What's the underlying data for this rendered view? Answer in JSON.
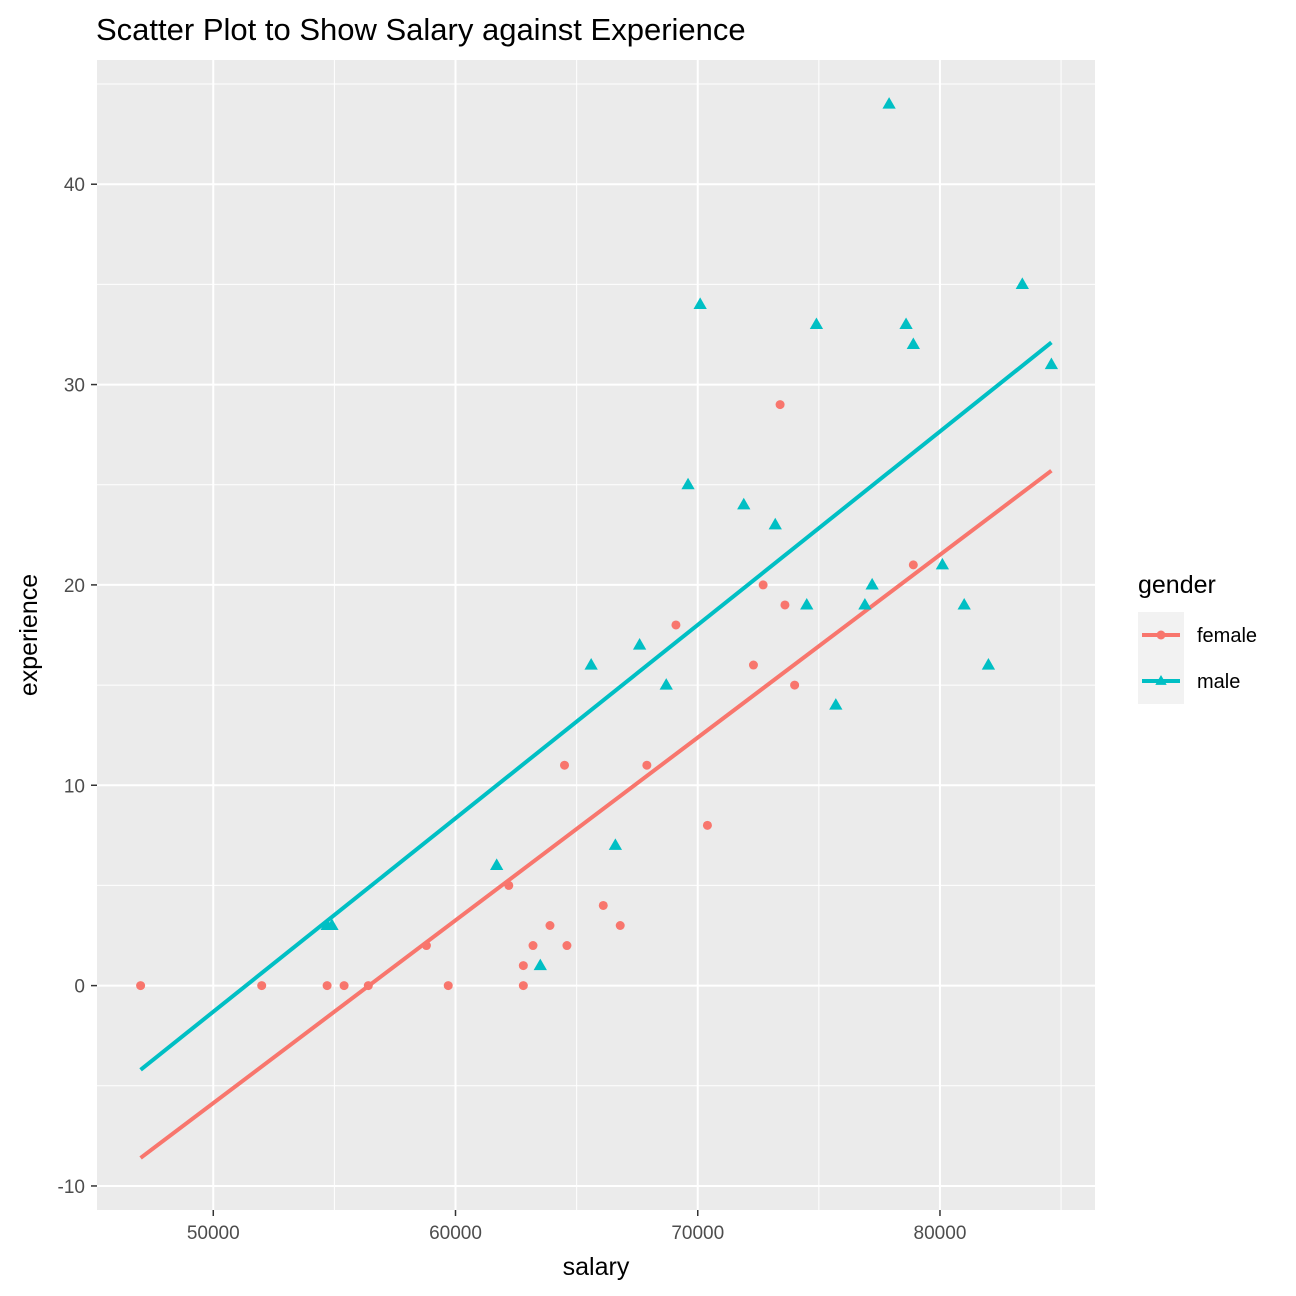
{
  "chart_data": {
    "type": "scatter",
    "title": "Scatter Plot to Show Salary against Experience",
    "xlabel": "salary",
    "ylabel": "experience",
    "xlim": [
      45200,
      86400
    ],
    "ylim": [
      -11.2,
      46.2
    ],
    "x_major_ticks": [
      50000,
      60000,
      70000,
      80000
    ],
    "x_tick_labels": [
      "50000",
      "60000",
      "70000",
      "80000"
    ],
    "x_minor_ticks": [
      55000,
      65000,
      75000,
      85000
    ],
    "y_major_ticks": [
      -10,
      0,
      10,
      20,
      30,
      40
    ],
    "y_tick_labels": [
      "-10",
      "0",
      "10",
      "20",
      "30",
      "40"
    ],
    "y_minor_ticks": [
      -5,
      5,
      15,
      25,
      35,
      45
    ],
    "grid": true,
    "legend": {
      "title": "gender",
      "position": "right"
    },
    "series": [
      {
        "name": "female",
        "color": "#f8766d",
        "marker": "circle",
        "points": [
          [
            47000,
            0
          ],
          [
            52000,
            0
          ],
          [
            54700,
            0
          ],
          [
            55400,
            0
          ],
          [
            56400,
            0
          ],
          [
            58800,
            2
          ],
          [
            59700,
            0
          ],
          [
            62200,
            5
          ],
          [
            62800,
            1
          ],
          [
            62800,
            0
          ],
          [
            63200,
            2
          ],
          [
            63900,
            3
          ],
          [
            64500,
            11
          ],
          [
            64600,
            2
          ],
          [
            66100,
            4
          ],
          [
            66800,
            3
          ],
          [
            67900,
            11
          ],
          [
            69100,
            18
          ],
          [
            70400,
            8
          ],
          [
            72300,
            16
          ],
          [
            72700,
            20
          ],
          [
            73400,
            29
          ],
          [
            73600,
            19
          ],
          [
            74000,
            15
          ],
          [
            78900,
            21
          ]
        ],
        "fit": [
          [
            47000,
            -8.6
          ],
          [
            84600,
            25.7
          ]
        ]
      },
      {
        "name": "male",
        "color": "#00bfc4",
        "marker": "triangle",
        "points": [
          [
            54700,
            3
          ],
          [
            54900,
            3
          ],
          [
            61700,
            6
          ],
          [
            63500,
            1
          ],
          [
            65600,
            16
          ],
          [
            66600,
            7
          ],
          [
            67600,
            17
          ],
          [
            68700,
            15
          ],
          [
            69600,
            25
          ],
          [
            70100,
            34
          ],
          [
            71900,
            24
          ],
          [
            73200,
            23
          ],
          [
            74500,
            19
          ],
          [
            74900,
            33
          ],
          [
            75700,
            14
          ],
          [
            76900,
            19
          ],
          [
            77200,
            20
          ],
          [
            77900,
            44
          ],
          [
            78600,
            33
          ],
          [
            78900,
            32
          ],
          [
            80100,
            21
          ],
          [
            81000,
            19
          ],
          [
            82000,
            16
          ],
          [
            83400,
            35
          ],
          [
            84600,
            31
          ]
        ],
        "fit": [
          [
            47000,
            -4.2
          ],
          [
            84600,
            32.1
          ]
        ]
      }
    ]
  }
}
